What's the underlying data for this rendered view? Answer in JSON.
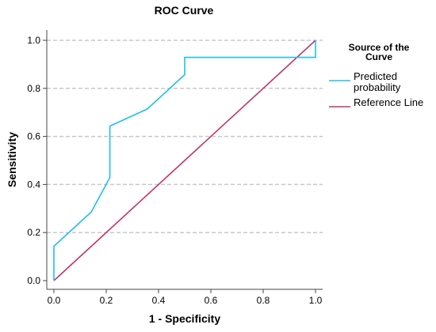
{
  "chart_data": {
    "type": "line",
    "title": "ROC Curve",
    "xlabel": "1 - Specificity",
    "ylabel": "Sensitivity",
    "xlim": [
      0,
      1
    ],
    "ylim": [
      0,
      1
    ],
    "xticks": [
      "0.0",
      "0.2",
      "0.4",
      "0.6",
      "0.8",
      "1.0"
    ],
    "yticks": [
      "0.0",
      "0.2",
      "0.4",
      "0.6",
      "0.8",
      "1.0"
    ],
    "grid": "horizontal dashed",
    "legend": {
      "title_lines": [
        "Source of the",
        "Curve"
      ],
      "placement": "right"
    },
    "series": [
      {
        "name_lines": [
          "Predicted",
          "probability"
        ],
        "color": "#1ec0ee",
        "x": [
          0,
          0,
          0.143,
          0.214,
          0.214,
          0.357,
          0.5,
          0.5,
          1.0,
          1.0
        ],
        "y": [
          0,
          0.143,
          0.286,
          0.429,
          0.643,
          0.714,
          0.857,
          0.929,
          0.929,
          1.0
        ]
      },
      {
        "name_lines": [
          "Reference Line"
        ],
        "color": "#c8336a",
        "x": [
          0,
          1
        ],
        "y": [
          0,
          1
        ]
      }
    ]
  }
}
